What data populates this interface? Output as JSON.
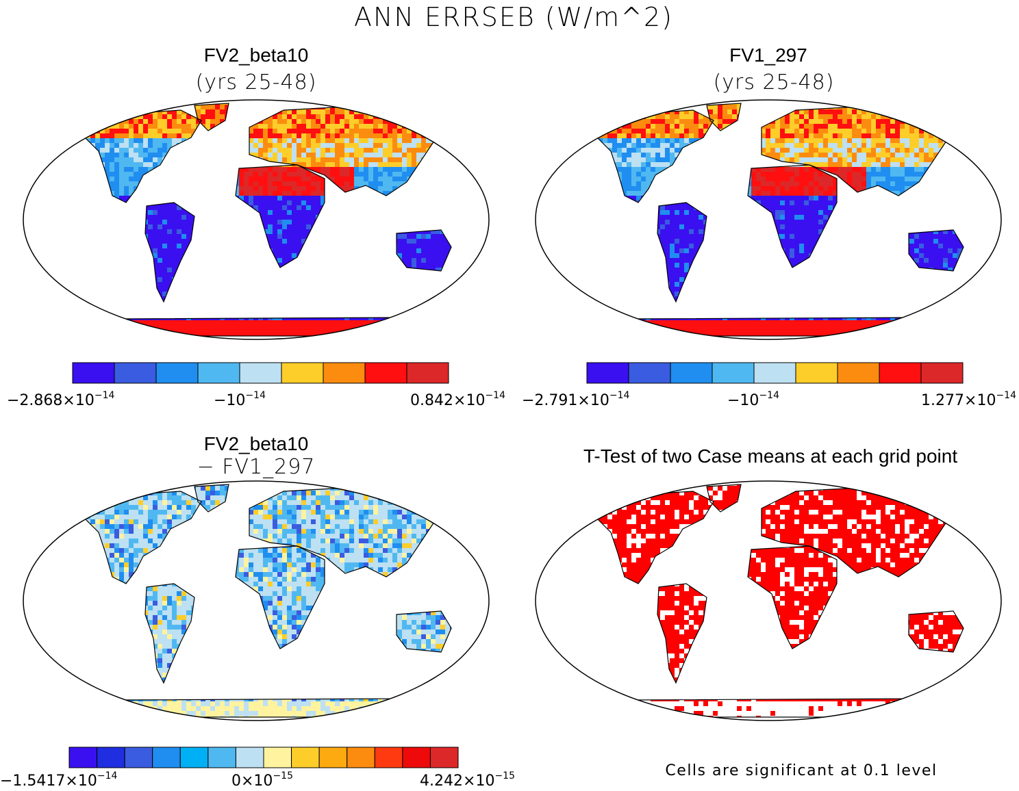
{
  "figure": {
    "title": "ANN ERRSEB (W/m^2)"
  },
  "colors": {
    "scale9": [
      "#3a10f0",
      "#3a5ce0",
      "#1f8ef0",
      "#50b8f0",
      "#bde0f2",
      "#fdcd2a",
      "#fb8c0f",
      "#ff0f0f",
      "#dc2828"
    ],
    "scale14": [
      "#3a10f0",
      "#1e2ee0",
      "#3a5ce0",
      "#1f8ef0",
      "#00b0f5",
      "#50b8f0",
      "#bde0f2",
      "#fff3a0",
      "#fdcd2a",
      "#fdaa10",
      "#fb8c0f",
      "#ff3a10",
      "#ee0a0a",
      "#dc2828"
    ],
    "significant": "#ff0000",
    "outline": "#000000"
  },
  "panels": [
    {
      "id": "case1",
      "title": "FV2_beta10",
      "subtitle": "(yrs 25-48)",
      "colorbar": {
        "labels": [
          {
            "mant": "−2.868×10",
            "exp": "−14"
          },
          {
            "mant": "−10",
            "exp": "−14"
          },
          {
            "mant": "0.842×10",
            "exp": "−14"
          }
        ]
      }
    },
    {
      "id": "case2",
      "title": "FV1_297",
      "subtitle": "(yrs 25-48)",
      "colorbar": {
        "labels": [
          {
            "mant": "−2.791×10",
            "exp": "−14"
          },
          {
            "mant": "−10",
            "exp": "−14"
          },
          {
            "mant": "1.277×10",
            "exp": "−14"
          }
        ]
      }
    },
    {
      "id": "diff",
      "title": "FV2_beta10",
      "subtitle": "− FV1_297",
      "colorbar": {
        "labels": [
          {
            "mant": "−1.5417×10",
            "exp": "−14"
          },
          {
            "mant": "0×10",
            "exp": "−15"
          },
          {
            "mant": "4.242×10",
            "exp": "−15"
          }
        ]
      }
    },
    {
      "id": "ttest",
      "title": "T-Test of two Case means at each grid point",
      "note": "Cells are significant at 0.1 level"
    }
  ]
}
